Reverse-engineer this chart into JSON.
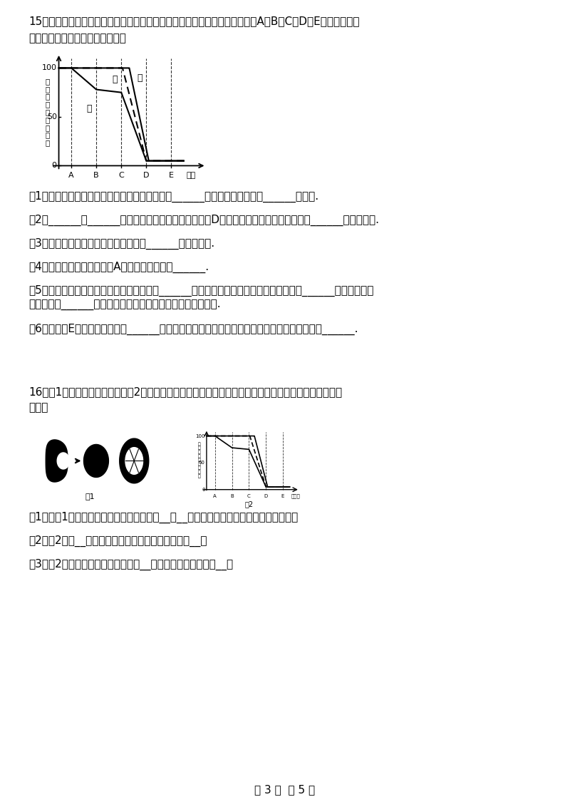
{
  "bg_color": "#ffffff",
  "page_width": 8.0,
  "page_height": 11.32,
  "q15_line1": "15．如图是食物进入人体消化道时，淀粉、蛋白质、脂肪被消化的程度，字母A、B、C、D、E代表消化器官",
  "q15_line2": "的排列顺序，据图回答有关问题：",
  "q15_sub1": "（1）若曲线甲代表的是淀粉的消化，乙代表的是______的消化，丙代表的是______的消化.",
  "q15_sub2": "（2）______、______和肠腺分泌的消化液都进入器官D中，其中不含消化酶的消化液是______分泌的胆汁.",
  "q15_sub3": "（3）吸收营养物质的主要部位是图中的______所示的部位.",
  "q15_sub4": "（4）食物成分甲的一部分在A处能初步消化变成______.",
  "q15_sub5": "（5）从图中可以看出，淀粉的初步是从图中______处开始的；蛋白质的初步消化是从图中______处开始的；食",
  "q15_sub5b": "物在图中的______处，最终都分解成能被人体吸收的营养物质.",
  "q15_sub6": "（6）图中的E代表的器官名称是______，它与小肠相比较，该器官的内表面上只有皱襞，而没有______.",
  "q16_line1": "16．图1是小肠的结构示意图，图2是淀粉、蛋白质和脂肪在消化道中的消化过程曲线图，请据图回答下列",
  "q16_line2": "问题：",
  "q16_sub1": "（1）从图1可以看出，小肠的内表面有许多__和__，大大增加了小肠消化和吸收的面积。",
  "q16_sub2": "（2）图2中的__段表示小肠，小肠内含有的消化液有__。",
  "q16_sub3": "（3）图2中，表示淀粉消化的曲线是__，其彻底消化的产物是__。",
  "footer": "第 3 页  共 5 页"
}
